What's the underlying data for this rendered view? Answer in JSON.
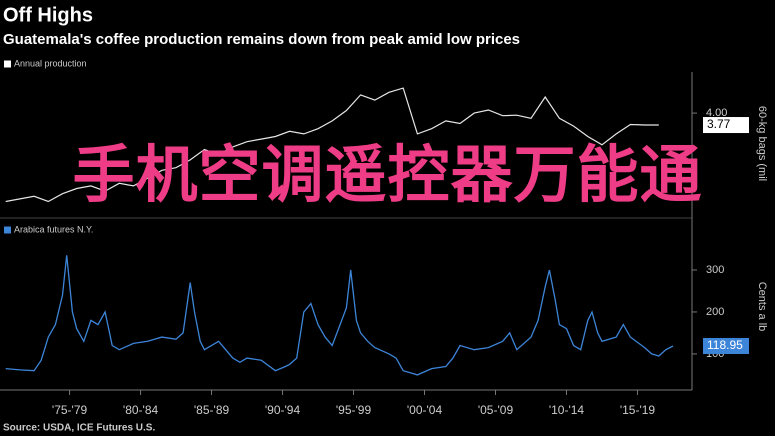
{
  "header": {
    "title": "Off Highs",
    "subtitle": "Guatemala's coffee production remains down from peak amid low prices"
  },
  "source": "Source: USDA, ICE Futures U.S.",
  "overlay_text": "手机空调遥控器万能通",
  "chart_data": [
    {
      "type": "line",
      "y_label": "60-kg bags (mil",
      "series": [
        {
          "name": "Annual production",
          "color": "#e6e6e6",
          "x": [
            1973,
            1974,
            1975,
            1976,
            1977,
            1978,
            1979,
            1980,
            1981,
            1982,
            1983,
            1984,
            1985,
            1986,
            1987,
            1988,
            1989,
            1990,
            1991,
            1992,
            1993,
            1994,
            1995,
            1996,
            1997,
            1998,
            1999,
            2000,
            2001,
            2002,
            2003,
            2004,
            2005,
            2006,
            2007,
            2008,
            2009,
            2010,
            2011,
            2012,
            2013,
            2014,
            2015,
            2016,
            2017,
            2018,
            2019
          ],
          "values": [
            2.3,
            2.35,
            2.4,
            2.3,
            2.45,
            2.55,
            2.6,
            2.5,
            2.65,
            2.6,
            2.75,
            2.9,
            2.95,
            3.1,
            3.3,
            3.2,
            3.35,
            3.45,
            3.5,
            3.55,
            3.65,
            3.6,
            3.7,
            3.85,
            4.05,
            4.35,
            4.25,
            4.4,
            4.48,
            3.6,
            3.7,
            3.85,
            3.8,
            4.0,
            4.06,
            3.95,
            3.96,
            3.9,
            4.31,
            3.9,
            3.75,
            3.55,
            3.39,
            3.6,
            3.78,
            3.77,
            3.77
          ]
        }
      ],
      "xlim": [
        1972.6,
        2021.2
      ],
      "ylim": [
        2.04,
        4.79
      ],
      "yticks": [
        {
          "value": 4,
          "label": "4.00"
        }
      ]
    },
    {
      "type": "line",
      "y_label": "Cents a lb",
      "series": [
        {
          "name": "Arabica futures N.Y.",
          "color": "#3d85d8",
          "x": [
            1973,
            1974,
            1975,
            1975.5,
            1976,
            1976.5,
            1977,
            1977.3,
            1977.7,
            1978,
            1978.5,
            1979,
            1979.5,
            1980,
            1980.5,
            1981,
            1982,
            1983,
            1984,
            1985,
            1985.5,
            1986,
            1986.3,
            1986.7,
            1987,
            1988,
            1989,
            1989.5,
            1990,
            1991,
            1992,
            1992.7,
            1993,
            1993.5,
            1994,
            1994.5,
            1995,
            1995.5,
            1996,
            1997,
            1997.3,
            1997.7,
            1998,
            1998.5,
            1999,
            2000,
            2000.5,
            2001,
            2001.5,
            2002,
            2003,
            2004,
            2004.5,
            2005,
            2006,
            2007,
            2008,
            2008.5,
            2009,
            2010,
            2010.5,
            2011,
            2011.3,
            2011.7,
            2012,
            2012.5,
            2013,
            2013.5,
            2014,
            2014.3,
            2014.7,
            2015,
            2016,
            2016.5,
            2017,
            2018,
            2018.5,
            2019,
            2019.5,
            2020
          ],
          "values": [
            65,
            62,
            60,
            85,
            140,
            170,
            240,
            335,
            200,
            160,
            130,
            180,
            170,
            200,
            120,
            110,
            125,
            130,
            140,
            135,
            150,
            270,
            200,
            130,
            110,
            130,
            90,
            80,
            90,
            85,
            60,
            70,
            75,
            90,
            200,
            220,
            170,
            140,
            120,
            210,
            300,
            180,
            150,
            130,
            115,
            100,
            90,
            60,
            55,
            50,
            65,
            70,
            90,
            120,
            110,
            115,
            130,
            150,
            110,
            140,
            180,
            260,
            300,
            230,
            170,
            160,
            120,
            110,
            180,
            200,
            150,
            130,
            140,
            170,
            140,
            115,
            100,
            95,
            110,
            118.95
          ]
        }
      ],
      "xlim": [
        1972.6,
        2021.2
      ],
      "ylim": [
        26,
        400
      ],
      "yticks": [
        100,
        200,
        300
      ],
      "xticks": [
        {
          "value": 1977.5,
          "label": "'75-'79"
        },
        {
          "value": 1982.5,
          "label": "'80-'84"
        },
        {
          "value": 1987.5,
          "label": "'85-'89"
        },
        {
          "value": 1992.5,
          "label": "'90-'94"
        },
        {
          "value": 1997.5,
          "label": "'95-'99"
        },
        {
          "value": 2002.5,
          "label": "'00-'04"
        },
        {
          "value": 2007.5,
          "label": "'05-'09"
        },
        {
          "value": 2012.5,
          "label": "'10-'14"
        },
        {
          "value": 2017.5,
          "label": "'15-'19"
        }
      ]
    }
  ]
}
